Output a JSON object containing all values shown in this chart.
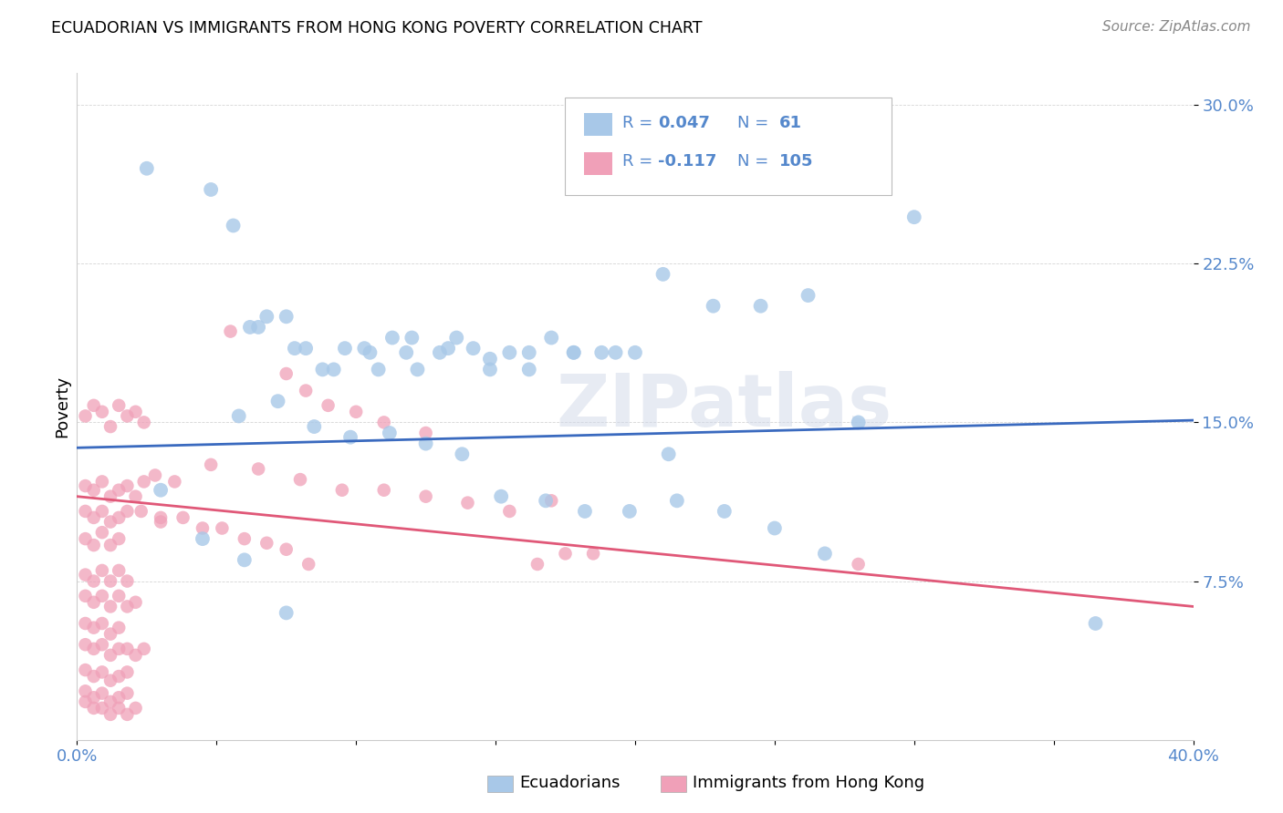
{
  "title": "ECUADORIAN VS IMMIGRANTS FROM HONG KONG POVERTY CORRELATION CHART",
  "source": "Source: ZipAtlas.com",
  "ylabel": "Poverty",
  "xlim": [
    0.0,
    0.4
  ],
  "ylim": [
    0.0,
    0.315
  ],
  "yticks": [
    0.075,
    0.15,
    0.225,
    0.3
  ],
  "ytick_labels": [
    "7.5%",
    "15.0%",
    "22.5%",
    "30.0%"
  ],
  "xtick_left_label": "0.0%",
  "xtick_right_label": "40.0%",
  "blue_color": "#a8c8e8",
  "pink_color": "#f0a0b8",
  "blue_line_color": "#3a6abf",
  "pink_line_color": "#e05878",
  "tick_color": "#5588cc",
  "watermark": "ZIPatlas",
  "blue_line_x0": 0.0,
  "blue_line_y0": 0.138,
  "blue_line_x1": 0.4,
  "blue_line_y1": 0.151,
  "pink_line_x0": 0.0,
  "pink_line_y0": 0.115,
  "pink_line_x1": 0.4,
  "pink_line_y1": 0.063,
  "blue_scatter_x": [
    0.025,
    0.048,
    0.056,
    0.062,
    0.068,
    0.075,
    0.082,
    0.088,
    0.096,
    0.103,
    0.108,
    0.113,
    0.118,
    0.122,
    0.13,
    0.136,
    0.142,
    0.148,
    0.155,
    0.162,
    0.17,
    0.178,
    0.188,
    0.2,
    0.212,
    0.065,
    0.078,
    0.092,
    0.105,
    0.12,
    0.133,
    0.148,
    0.162,
    0.178,
    0.193,
    0.21,
    0.228,
    0.245,
    0.262,
    0.28,
    0.058,
    0.072,
    0.085,
    0.098,
    0.112,
    0.125,
    0.138,
    0.152,
    0.168,
    0.182,
    0.198,
    0.215,
    0.232,
    0.25,
    0.268,
    0.03,
    0.045,
    0.06,
    0.075,
    0.3,
    0.365
  ],
  "blue_scatter_y": [
    0.27,
    0.26,
    0.243,
    0.195,
    0.2,
    0.2,
    0.185,
    0.175,
    0.185,
    0.185,
    0.175,
    0.19,
    0.183,
    0.175,
    0.183,
    0.19,
    0.185,
    0.175,
    0.183,
    0.183,
    0.19,
    0.183,
    0.183,
    0.183,
    0.135,
    0.195,
    0.185,
    0.175,
    0.183,
    0.19,
    0.185,
    0.18,
    0.175,
    0.183,
    0.183,
    0.22,
    0.205,
    0.205,
    0.21,
    0.15,
    0.153,
    0.16,
    0.148,
    0.143,
    0.145,
    0.14,
    0.135,
    0.115,
    0.113,
    0.108,
    0.108,
    0.113,
    0.108,
    0.1,
    0.088,
    0.118,
    0.095,
    0.085,
    0.06,
    0.247,
    0.055
  ],
  "pink_scatter_x": [
    0.003,
    0.006,
    0.009,
    0.012,
    0.015,
    0.018,
    0.021,
    0.024,
    0.003,
    0.006,
    0.009,
    0.012,
    0.015,
    0.018,
    0.021,
    0.024,
    0.003,
    0.006,
    0.009,
    0.012,
    0.015,
    0.018,
    0.003,
    0.006,
    0.009,
    0.012,
    0.015,
    0.003,
    0.006,
    0.009,
    0.012,
    0.015,
    0.018,
    0.003,
    0.006,
    0.009,
    0.012,
    0.015,
    0.018,
    0.021,
    0.003,
    0.006,
    0.009,
    0.012,
    0.015,
    0.003,
    0.006,
    0.009,
    0.012,
    0.015,
    0.018,
    0.021,
    0.024,
    0.003,
    0.006,
    0.009,
    0.012,
    0.015,
    0.018,
    0.003,
    0.006,
    0.009,
    0.012,
    0.015,
    0.018,
    0.003,
    0.006,
    0.009,
    0.012,
    0.015,
    0.018,
    0.021,
    0.028,
    0.035,
    0.048,
    0.065,
    0.08,
    0.095,
    0.11,
    0.125,
    0.14,
    0.155,
    0.17,
    0.023,
    0.03,
    0.038,
    0.045,
    0.052,
    0.06,
    0.068,
    0.075,
    0.083,
    0.165,
    0.175,
    0.185,
    0.28,
    0.03,
    0.055,
    0.075,
    0.082,
    0.09,
    0.1,
    0.11,
    0.125
  ],
  "pink_scatter_y": [
    0.153,
    0.158,
    0.155,
    0.148,
    0.158,
    0.153,
    0.155,
    0.15,
    0.12,
    0.118,
    0.122,
    0.115,
    0.118,
    0.12,
    0.115,
    0.122,
    0.108,
    0.105,
    0.108,
    0.103,
    0.105,
    0.108,
    0.095,
    0.092,
    0.098,
    0.092,
    0.095,
    0.078,
    0.075,
    0.08,
    0.075,
    0.08,
    0.075,
    0.068,
    0.065,
    0.068,
    0.063,
    0.068,
    0.063,
    0.065,
    0.055,
    0.053,
    0.055,
    0.05,
    0.053,
    0.045,
    0.043,
    0.045,
    0.04,
    0.043,
    0.043,
    0.04,
    0.043,
    0.033,
    0.03,
    0.032,
    0.028,
    0.03,
    0.032,
    0.023,
    0.02,
    0.022,
    0.018,
    0.02,
    0.022,
    0.018,
    0.015,
    0.015,
    0.012,
    0.015,
    0.012,
    0.015,
    0.125,
    0.122,
    0.13,
    0.128,
    0.123,
    0.118,
    0.118,
    0.115,
    0.112,
    0.108,
    0.113,
    0.108,
    0.105,
    0.105,
    0.1,
    0.1,
    0.095,
    0.093,
    0.09,
    0.083,
    0.083,
    0.088,
    0.088,
    0.083,
    0.103,
    0.193,
    0.173,
    0.165,
    0.158,
    0.155,
    0.15,
    0.145
  ]
}
